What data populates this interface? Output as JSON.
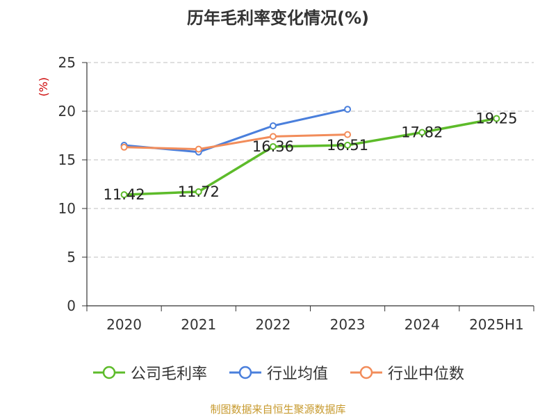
{
  "chart_data": {
    "type": "line",
    "title": "历年毛利率变化情况(%)",
    "ylabel": "(%)",
    "xlabel": "",
    "categories": [
      "2020",
      "2021",
      "2022",
      "2023",
      "2024",
      "2025H1"
    ],
    "ylim": [
      0,
      25
    ],
    "yticks": [
      0,
      5,
      10,
      15,
      20,
      25
    ],
    "grid": true,
    "legend_position": "bottom",
    "series": [
      {
        "name": "公司毛利率",
        "color": "#5dbb2a",
        "values": [
          11.42,
          11.72,
          16.36,
          16.51,
          17.82,
          19.25
        ],
        "labels": [
          "11.42",
          "11.72",
          "16.36",
          "16.51",
          "17.82",
          "19.25"
        ]
      },
      {
        "name": "行业均值",
        "color": "#4a7fdc",
        "values": [
          16.5,
          15.8,
          18.5,
          20.2,
          null,
          null
        ]
      },
      {
        "name": "行业中位数",
        "color": "#f28c5a",
        "values": [
          16.3,
          16.1,
          17.4,
          17.6,
          null,
          null
        ]
      }
    ]
  },
  "source_note": "制图数据来自恒生聚源数据库"
}
